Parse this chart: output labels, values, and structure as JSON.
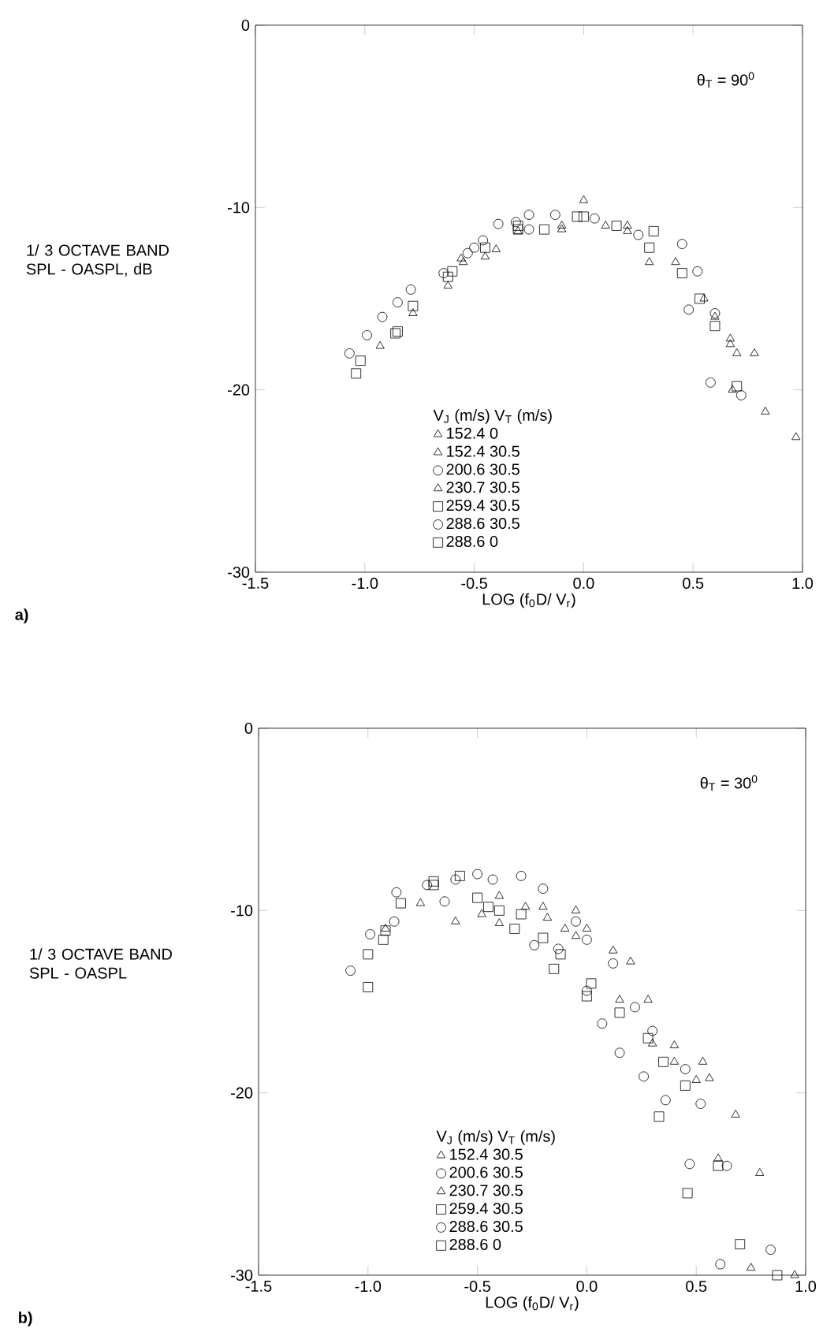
{
  "chart_data": [
    {
      "type": "scatter",
      "xlabel": "LOG (f$_{0}$D/ V$_{r}$)",
      "ylabel": "1/ 3 OCTAVE BAND SPL - OASPL, dB",
      "legend_title": "V$_{J}$ (m/s)    V$_{T}$ (m/s)",
      "legend": "bottom left",
      "xlim": [
        -1.5,
        1.0
      ],
      "ylim": [
        -30,
        0
      ],
      "xticks": [
        {
          "value": -1.5,
          "label": "-1.5"
        },
        {
          "value": -1.0,
          "label": "-1.0"
        },
        {
          "value": -0.5,
          "label": "-0.5"
        },
        {
          "value": 0.0,
          "label": "0.0"
        },
        {
          "value": 0.5,
          "label": "0.5"
        },
        {
          "value": 1.0,
          "label": "1.0"
        }
      ],
      "yticks": [
        -30,
        -20,
        -10,
        0
      ],
      "annotations": [
        "θ$_{T}$ = 90$^{0}$",
        "a)"
      ],
      "series": [
        {
          "name": "152.4   0",
          "color": "#000000",
          "marker": "triangle",
          "x": [
            -0.55,
            -0.4,
            -0.1,
            0.2,
            0.42,
            0.6,
            0.67,
            0.7,
            0.83
          ],
          "values": [
            -13.0,
            -12.3,
            -11.2,
            -11.3,
            -13.0,
            -16.0,
            -17.2,
            -18.0,
            -21.2
          ]
        },
        {
          "name": "152.4   30.5",
          "color": "#000000",
          "marker": "triangle",
          "x": [
            -0.56,
            -0.3,
            -0.1,
            0.1,
            0.3,
            0.67,
            0.78,
            0.97
          ],
          "values": [
            -12.8,
            -11.3,
            -11.0,
            -11.0,
            -13.0,
            -17.5,
            -18.0,
            -22.6
          ]
        },
        {
          "name": "200.6   30.5",
          "color": "#000000",
          "marker": "circle",
          "x": [
            -0.5,
            -0.25,
            0.05,
            0.25,
            0.45,
            0.52,
            0.6,
            0.72
          ],
          "values": [
            -12.2,
            -11.2,
            -10.6,
            -11.5,
            -12.0,
            -13.5,
            -15.8,
            -20.3
          ]
        },
        {
          "name": "230.7   30.5",
          "color": "#000000",
          "marker": "triangle",
          "x": [
            -0.93,
            -0.78,
            -0.62,
            -0.45,
            0.0,
            0.2,
            0.55,
            0.68
          ],
          "values": [
            -17.6,
            -15.8,
            -14.3,
            -12.7,
            -9.6,
            -11.0,
            -15.0,
            -20.0
          ]
        },
        {
          "name": "259.4   30.5",
          "color": "#000000",
          "marker": "square",
          "x": [
            -1.04,
            -0.85,
            -0.6,
            -0.3,
            0.0,
            0.32,
            0.53,
            0.7
          ],
          "values": [
            -19.1,
            -16.8,
            -13.5,
            -11.2,
            -10.5,
            -11.3,
            -15.0,
            -19.8
          ]
        },
        {
          "name": "288.6   30.5",
          "color": "#000000",
          "marker": "circle",
          "x": [
            -1.07,
            -0.99,
            -0.92,
            -0.85,
            -0.79,
            -0.64,
            -0.53,
            -0.46,
            -0.39,
            -0.31,
            -0.25,
            -0.13,
            0.48,
            0.58
          ],
          "values": [
            -18.0,
            -17.0,
            -16.0,
            -15.2,
            -14.5,
            -13.6,
            -12.5,
            -11.8,
            -10.9,
            -10.8,
            -10.4,
            -10.4,
            -15.6,
            -19.6
          ]
        },
        {
          "name": "288.6   0",
          "color": "#000000",
          "marker": "square",
          "x": [
            -1.02,
            -0.86,
            -0.78,
            -0.62,
            -0.45,
            -0.3,
            -0.18,
            -0.03,
            0.15,
            0.3,
            0.45,
            0.6
          ],
          "values": [
            -18.4,
            -16.9,
            -15.4,
            -13.8,
            -12.2,
            -11.0,
            -11.2,
            -10.5,
            -11.0,
            -12.2,
            -13.6,
            -16.5
          ]
        }
      ]
    },
    {
      "type": "scatter",
      "xlabel": "LOG (f$_{0}$D/ V$_{r}$)",
      "ylabel": "1/ 3 OCTAVE BAND SPL - OASPL",
      "legend_title": "V$_{J}$ (m/s)    V$_{T}$ (m/s)",
      "legend": "bottom left",
      "xlim": [
        -1.5,
        1.0
      ],
      "ylim": [
        -30,
        0
      ],
      "xticks": [
        {
          "value": -1.5,
          "label": "-1.5"
        },
        {
          "value": -1.0,
          "label": "-1.0"
        },
        {
          "value": -0.5,
          "label": "-0.5"
        },
        {
          "value": 0.0,
          "label": "0.0"
        },
        {
          "value": 0.5,
          "label": "0.5"
        },
        {
          "value": 1.0,
          "label": "1.0"
        }
      ],
      "yticks": [
        -30,
        -20,
        -10,
        0
      ],
      "annotations": [
        "θ$_{T}$ = 30$^{0}$",
        "b)"
      ],
      "series": [
        {
          "name": "152.4   30.5",
          "color": "#000000",
          "marker": "triangle",
          "x": [
            -0.6,
            -0.48,
            -0.4,
            -0.2,
            -0.05,
            0.0,
            0.12,
            0.2,
            0.28,
            0.4,
            0.53,
            0.56,
            0.68,
            0.79,
            0.95
          ],
          "values": [
            -10.6,
            -10.2,
            -10.7,
            -9.8,
            -10.0,
            -11.0,
            -12.2,
            -12.8,
            -14.9,
            -17.4,
            -18.3,
            -19.2,
            -21.2,
            -24.4,
            -30.0
          ]
        },
        {
          "name": "200.6   30.5",
          "color": "#000000",
          "marker": "circle",
          "x": [
            -0.88,
            -0.65,
            -0.5,
            -0.43,
            -0.3,
            -0.2,
            -0.05,
            0.0,
            0.12,
            0.22,
            0.3,
            0.45,
            0.52,
            0.64,
            0.84
          ],
          "values": [
            -10.6,
            -9.5,
            -8.0,
            -8.3,
            -8.1,
            -8.8,
            -10.6,
            -11.6,
            -12.9,
            -15.3,
            -16.6,
            -18.7,
            -20.6,
            -24.0,
            -28.6
          ]
        },
        {
          "name": "230.7   30.5",
          "color": "#000000",
          "marker": "triangle",
          "x": [
            -0.92,
            -0.76,
            -0.4,
            -0.28,
            -0.18,
            -0.1,
            -0.05,
            0.15,
            0.3,
            0.4,
            0.5,
            0.6,
            0.75
          ],
          "values": [
            -11.0,
            -9.6,
            -9.2,
            -9.8,
            -10.4,
            -11.0,
            -11.4,
            -14.9,
            -17.3,
            -18.3,
            -19.3,
            -23.6,
            -29.6
          ]
        },
        {
          "name": "259.4   30.5",
          "color": "#000000",
          "marker": "square",
          "x": [
            -1.0,
            -0.92,
            -0.7,
            -0.5,
            -0.45,
            -0.3,
            -0.2,
            -0.12,
            0.02,
            0.15,
            0.28,
            0.35,
            0.45,
            0.6,
            0.7
          ],
          "values": [
            -12.4,
            -11.1,
            -8.4,
            -9.3,
            -9.8,
            -10.2,
            -11.5,
            -12.4,
            -14.0,
            -15.6,
            -17.0,
            -18.3,
            -19.6,
            -24.0,
            -28.3
          ]
        },
        {
          "name": "288.6   30.5",
          "color": "#000000",
          "marker": "circle",
          "x": [
            -1.08,
            -0.99,
            -0.87,
            -0.73,
            -0.6,
            -0.24,
            -0.13,
            0.0,
            0.07,
            0.15,
            0.26,
            0.36,
            0.47,
            0.61
          ],
          "values": [
            -13.3,
            -11.3,
            -9.0,
            -8.6,
            -8.3,
            -11.9,
            -12.1,
            -14.4,
            -16.2,
            -17.8,
            -19.1,
            -20.4,
            -23.9,
            -29.4
          ]
        },
        {
          "name": "288.6   0",
          "color": "#000000",
          "marker": "square",
          "x": [
            -1.0,
            -0.93,
            -0.85,
            -0.7,
            -0.58,
            -0.4,
            -0.33,
            -0.15,
            0.0,
            0.33,
            0.46,
            0.87
          ],
          "values": [
            -14.2,
            -11.6,
            -9.6,
            -8.6,
            -8.1,
            -10.0,
            -11.0,
            -13.2,
            -14.7,
            -21.3,
            -25.5,
            -30.0
          ]
        }
      ]
    }
  ]
}
